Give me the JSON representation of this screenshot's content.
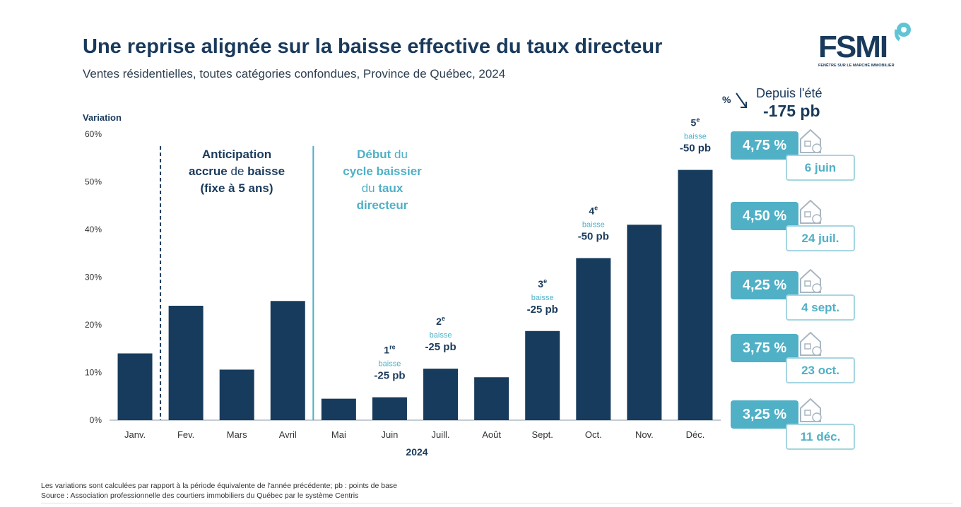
{
  "header": {
    "title": "Une reprise alignée sur la baisse effective du taux directeur",
    "subtitle": "Ventes résidentielles, toutes catégories confondues, Province de Québec, 2024"
  },
  "logo": {
    "text": "FSMI",
    "tagline": "FENÊTRE SUR LE MARCHÉ IMMOBILIER"
  },
  "chart_data": {
    "type": "bar",
    "ylabel": "Variation",
    "xlabel": "2024",
    "ylim": [
      0,
      60
    ],
    "yticks": [
      "0%",
      "10%",
      "20%",
      "30%",
      "40%",
      "50%",
      "60%"
    ],
    "categories": [
      "Janv.",
      "Fev.",
      "Mars",
      "Avril",
      "Mai",
      "Juin",
      "Juill.",
      "Août",
      "Sept.",
      "Oct.",
      "Nov.",
      "Déc."
    ],
    "values": [
      14,
      24,
      10.6,
      25,
      4.5,
      4.8,
      10.8,
      9,
      18.7,
      34,
      41,
      52.5
    ],
    "bar_color": "#173b5c",
    "annotations": [
      {
        "lines": [
          "Anticipation",
          "accrue de baisse",
          "(fixe à 5 ans)"
        ]
      },
      {
        "lines": [
          "Début du",
          "cycle baissier",
          "du taux",
          "directeur"
        ]
      }
    ],
    "cuts": [
      {
        "category": "Juin",
        "ordinal": "1",
        "suffix": "re",
        "word": "baisse",
        "amount": "-25 pb"
      },
      {
        "category": "Juill.",
        "ordinal": "2",
        "suffix": "e",
        "word": "baisse",
        "amount": "-25 pb"
      },
      {
        "category": "Sept.",
        "ordinal": "3",
        "suffix": "e",
        "word": "baisse",
        "amount": "-25 pb"
      },
      {
        "category": "Oct.",
        "ordinal": "4",
        "suffix": "e",
        "word": "baisse",
        "amount": "-50 pb"
      },
      {
        "category": "Déc.",
        "ordinal": "5",
        "suffix": "e",
        "word": "baisse",
        "amount": "-50 pb"
      }
    ]
  },
  "since": {
    "label": "Depuis l'été",
    "value": "-175 pb"
  },
  "rates": [
    {
      "rate": "4,75 %",
      "date": "6 juin"
    },
    {
      "rate": "4,50 %",
      "date": "24 juil."
    },
    {
      "rate": "4,25 %",
      "date": "4 sept."
    },
    {
      "rate": "3,75 %",
      "date": "23 oct."
    },
    {
      "rate": "3,25 %",
      "date": "11 déc."
    }
  ],
  "footnotes": {
    "note": "Les variations sont calculées par rapport à la période équivalente de l'année précédente; pb : points de base",
    "source": "Source : Association professionnelle des courtiers immobiliers du Québec par le système Centris"
  },
  "colors": {
    "navy": "#173b5c",
    "teal": "#4fb0c6",
    "teal_light": "#a6d6e1"
  }
}
